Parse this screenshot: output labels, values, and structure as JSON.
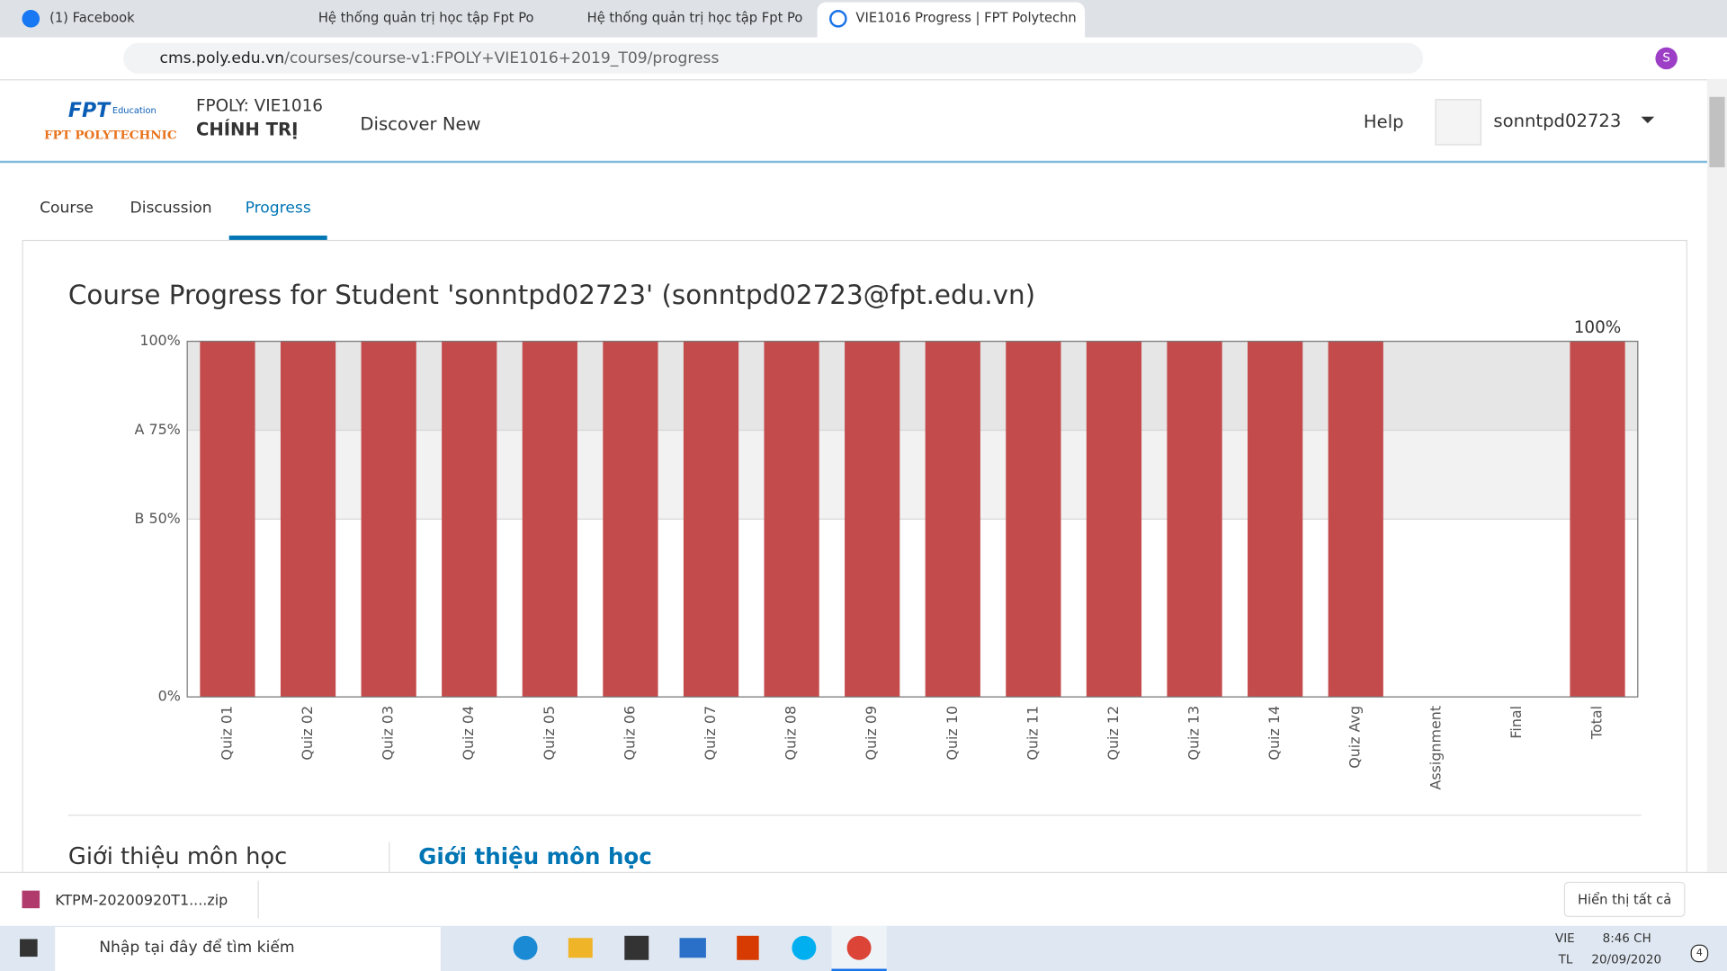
{
  "browser": {
    "tabs": [
      "(1) Facebook",
      "Hệ thống quản trị học tập Fpt Po",
      "Hệ thống quản trị học tập Fpt Po",
      "VIE1016 Progress | FPT Polytechn"
    ],
    "url_domain": "cms.poly.edu.vn",
    "url_path": "/courses/course-v1:FPOLY+VIE1016+2019_T09/progress",
    "avatar": "S"
  },
  "header": {
    "logo_sub": "Education",
    "logo_name": "FPT POLYTECHNIC",
    "course_code": "FPOLY: VIE1016",
    "course_name": "CHÍNH TRỊ",
    "nav": "Discover New",
    "help": "Help",
    "user": "sonntpd02723"
  },
  "course_tabs": [
    "Course",
    "Discussion",
    "Progress"
  ],
  "chart_data": {
    "type": "bar",
    "title": "Course Progress for Student 'sonntpd02723' (sonntpd02723@fpt.edu.vn)",
    "categories": [
      "Quiz 01",
      "Quiz 02",
      "Quiz 03",
      "Quiz 04",
      "Quiz 05",
      "Quiz 06",
      "Quiz 07",
      "Quiz 08",
      "Quiz 09",
      "Quiz 10",
      "Quiz 11",
      "Quiz 12",
      "Quiz 13",
      "Quiz 14",
      "Quiz Avg",
      "Assignment",
      "Final",
      "Total"
    ],
    "values": [
      100,
      100,
      100,
      100,
      100,
      100,
      100,
      100,
      100,
      100,
      100,
      100,
      100,
      100,
      100,
      0,
      0,
      100
    ],
    "value_labels": [
      null,
      null,
      null,
      null,
      null,
      null,
      null,
      null,
      null,
      null,
      null,
      null,
      null,
      null,
      null,
      null,
      null,
      "100%"
    ],
    "color": "#c44b4c",
    "ylim": [
      0,
      100
    ],
    "yticks": [
      {
        "value": 0,
        "label": "0%"
      },
      {
        "value": 50,
        "label": "B 50%"
      },
      {
        "value": 75,
        "label": "A 75%"
      },
      {
        "value": 100,
        "label": "100%"
      }
    ]
  },
  "section": {
    "left": "Giới thiệu môn học",
    "right": "Giới thiệu môn học"
  },
  "download": {
    "file": "KTPM-20200920T1....zip",
    "show_all": "Hiển thị tất cả"
  },
  "taskbar": {
    "search": "Nhập tại đây để tìm kiếm",
    "lang": "VIE",
    "layout": "TL",
    "time": "8:46 CH",
    "date": "20/09/2020",
    "notifications": "4"
  }
}
